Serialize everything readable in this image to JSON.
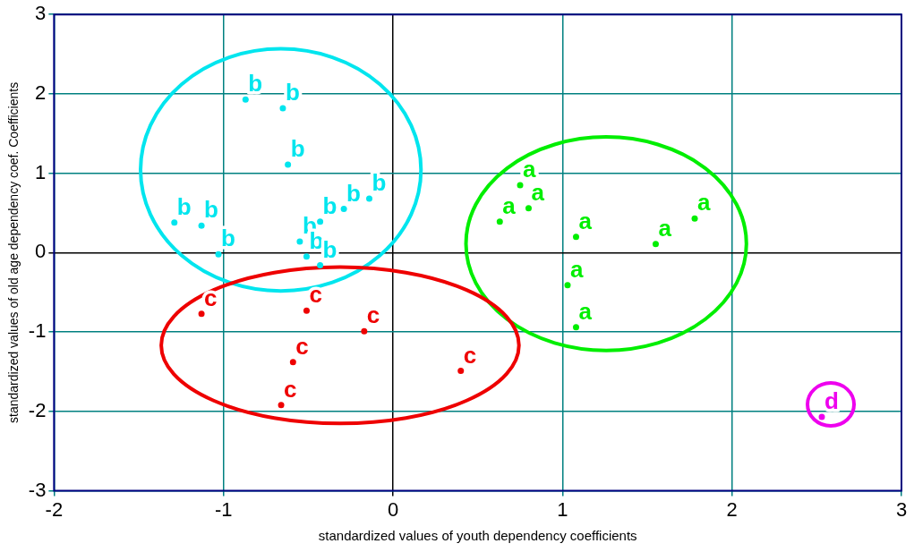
{
  "chart_data": {
    "type": "scatter",
    "xlabel": "standardized values of youth dependency coefficients",
    "ylabel": "standardized values of old age dependency coef. Coefficients",
    "xlim": [
      -2,
      3
    ],
    "xticks": [
      -2,
      -1,
      0,
      1,
      2,
      3
    ],
    "ylim": [
      -3,
      3
    ],
    "yticks": [
      -3,
      -2,
      -1,
      0,
      1,
      2,
      3
    ],
    "grid": true,
    "legend": false,
    "series": [
      {
        "name": "a",
        "color": "#00ee00",
        "x": [
          0.75,
          0.63,
          0.8,
          1.08,
          1.55,
          1.78,
          1.03,
          1.08
        ],
        "values": [
          0.85,
          0.39,
          0.56,
          0.2,
          0.11,
          0.43,
          -0.41,
          -0.94
        ]
      },
      {
        "name": "b",
        "color": "#00e5ee",
        "x": [
          -0.87,
          -0.65,
          -0.62,
          -1.29,
          -1.13,
          -1.03,
          -0.43,
          -0.29,
          -0.14,
          -0.55,
          -0.51,
          -0.43
        ],
        "values": [
          1.93,
          1.82,
          1.11,
          0.38,
          0.34,
          -0.02,
          0.39,
          0.55,
          0.68,
          0.14,
          -0.05,
          -0.16
        ]
      },
      {
        "name": "c",
        "color": "#ee0000",
        "x": [
          -1.13,
          -0.51,
          -0.17,
          -0.59,
          0.4,
          -0.66
        ],
        "values": [
          -0.77,
          -0.73,
          -0.99,
          -1.38,
          -1.49,
          -1.92
        ]
      },
      {
        "name": "d",
        "color": "#ee00ee",
        "x": [
          2.53
        ],
        "values": [
          -2.07
        ]
      }
    ]
  }
}
